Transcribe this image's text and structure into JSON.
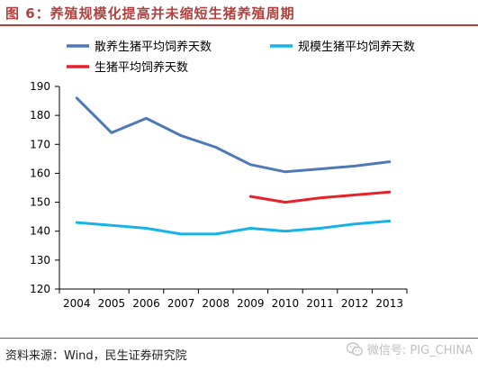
{
  "header": {
    "title": "图 6：养殖规模化提高并未缩短生猪养殖周期"
  },
  "footer": {
    "source": "资料来源：Wind，民生证券研究院",
    "watermark": "微信号: PIG_CHINA"
  },
  "colors": {
    "accent": "#b0413e",
    "series1": "#4f78b8",
    "series2": "#17b3e6",
    "series3": "#e8202a"
  },
  "chart_data": {
    "type": "line",
    "title": "",
    "xlabel": "",
    "ylabel": "",
    "ylim": [
      120,
      190
    ],
    "yticks": [
      120,
      130,
      140,
      150,
      160,
      170,
      180,
      190
    ],
    "x": [
      "2004",
      "2005",
      "2006",
      "2007",
      "2008",
      "2009",
      "2010",
      "2011",
      "2012",
      "2013"
    ],
    "legend_position": "top",
    "grid": false,
    "series": [
      {
        "name": "散养生猪平均饲养天数",
        "color": "#4f78b8",
        "values": [
          186,
          174,
          179,
          173,
          169,
          163,
          160.5,
          161.5,
          162.5,
          164
        ]
      },
      {
        "name": "规模生猪平均饲养天数",
        "color": "#17b3e6",
        "values": [
          143,
          142,
          141,
          139,
          139,
          141,
          140,
          141,
          142.5,
          143.5
        ]
      },
      {
        "name": "生猪平均饲养天数",
        "color": "#e8202a",
        "values": [
          null,
          null,
          null,
          null,
          null,
          152,
          150,
          151.5,
          152.5,
          153.5
        ]
      }
    ]
  }
}
